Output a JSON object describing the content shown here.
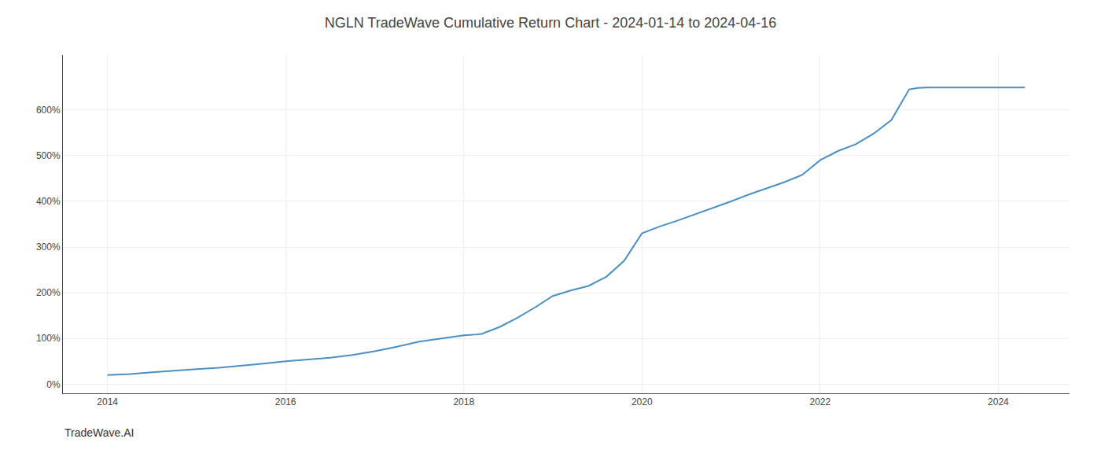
{
  "chart_data": {
    "type": "line",
    "title": "NGLN TradeWave Cumulative Return Chart - 2024-01-14 to 2024-04-16",
    "annotations": [
      "TradeWave.AI"
    ],
    "x": [
      2014.0,
      2014.25,
      2014.5,
      2014.75,
      2015.0,
      2015.25,
      2015.5,
      2015.75,
      2016.0,
      2016.25,
      2016.5,
      2016.75,
      2017.0,
      2017.25,
      2017.5,
      2017.75,
      2018.0,
      2018.1,
      2018.2,
      2018.4,
      2018.6,
      2018.8,
      2019.0,
      2019.2,
      2019.4,
      2019.6,
      2019.8,
      2020.0,
      2020.2,
      2020.4,
      2020.6,
      2020.8,
      2021.0,
      2021.2,
      2021.4,
      2021.6,
      2021.8,
      2022.0,
      2022.2,
      2022.4,
      2022.6,
      2022.8,
      2023.0,
      2023.1,
      2023.2,
      2023.5,
      2023.75,
      2024.0,
      2024.3
    ],
    "values": [
      20,
      22,
      26,
      30,
      33,
      36,
      40,
      45,
      50,
      54,
      58,
      64,
      72,
      82,
      93,
      100,
      107,
      108,
      110,
      125,
      145,
      168,
      193,
      205,
      215,
      235,
      270,
      330,
      345,
      358,
      372,
      385,
      400,
      415,
      428,
      442,
      458,
      490,
      510,
      525,
      548,
      578,
      645,
      648,
      649,
      649,
      649,
      649,
      649
    ],
    "color": "#4A90C4",
    "xlim": [
      2013.5,
      2024.8
    ],
    "ylim": [
      -20,
      720
    ],
    "xticks": [
      2014,
      2016,
      2018,
      2020,
      2022,
      2024
    ],
    "yticks": [
      {
        "value": 0,
        "label": "0%"
      },
      {
        "value": 100,
        "label": "100%"
      },
      {
        "value": 200,
        "label": "200%"
      },
      {
        "value": 300,
        "label": "300%"
      },
      {
        "value": 400,
        "label": "400%"
      },
      {
        "value": 500,
        "label": "500%"
      },
      {
        "value": 600,
        "label": "600%"
      }
    ],
    "grid": true
  }
}
